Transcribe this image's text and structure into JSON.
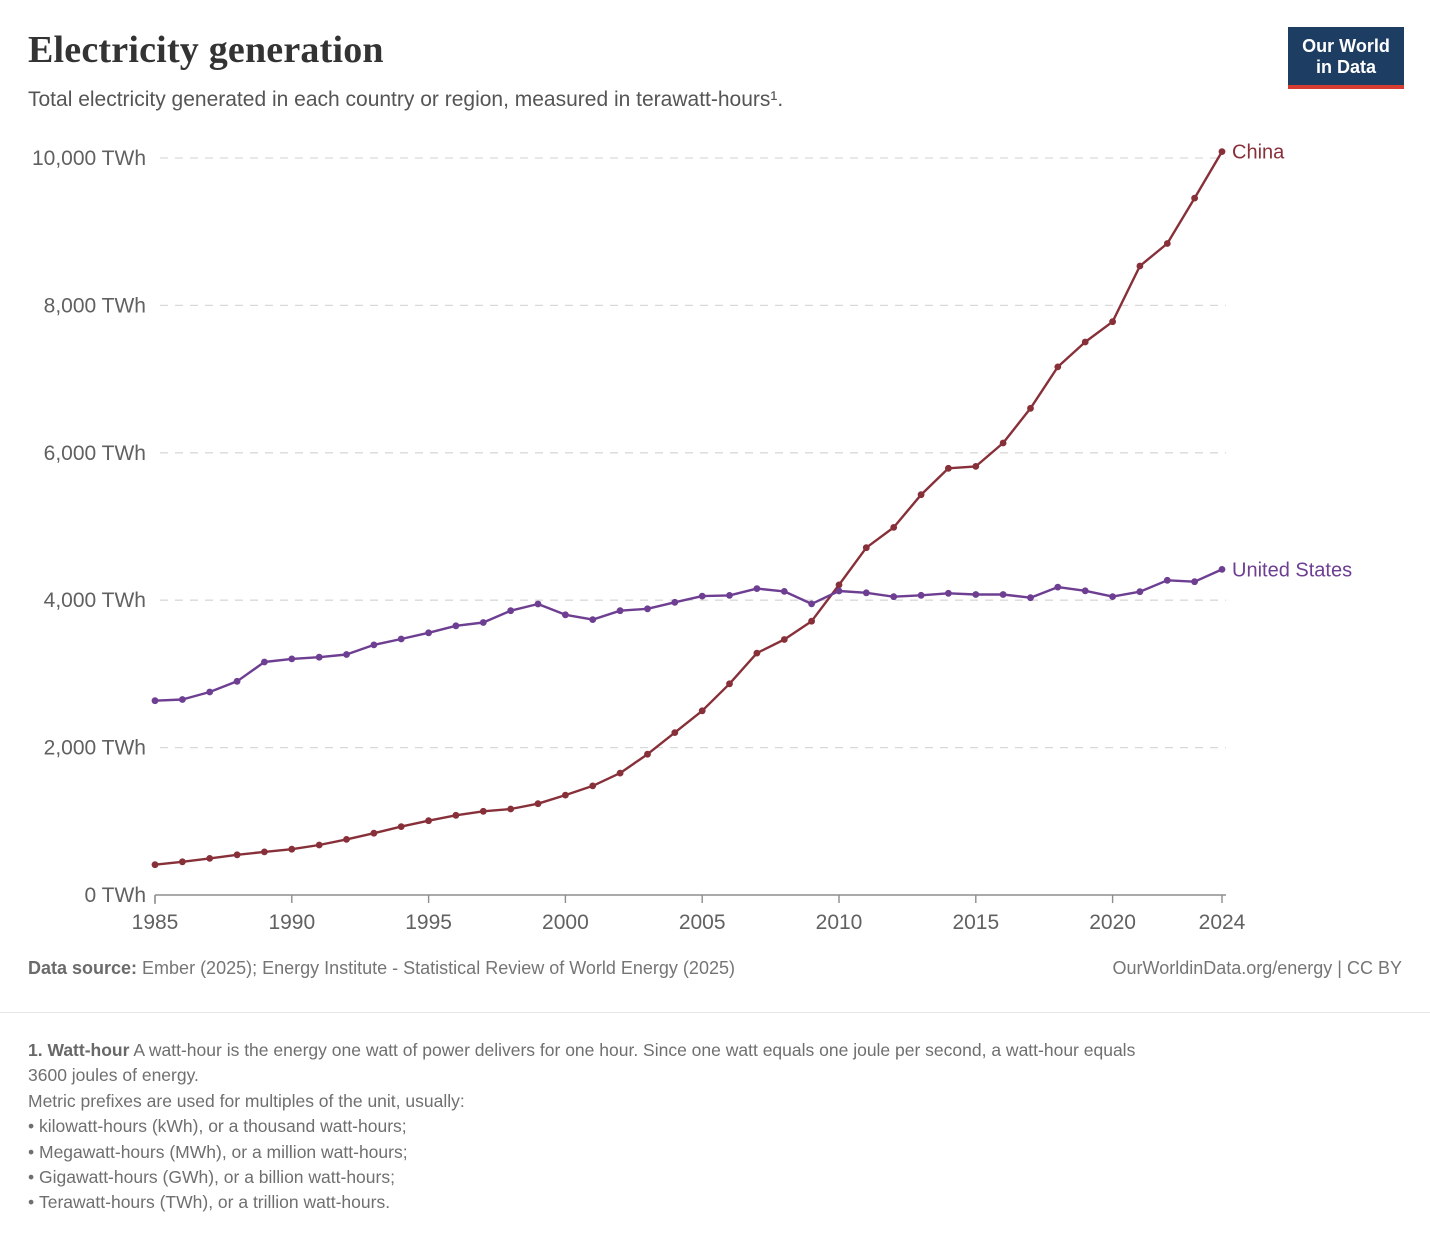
{
  "header": {
    "title": "Electricity generation",
    "subtitle": "Total electricity generated in each country or region, measured in terawatt-hours¹.",
    "logo": {
      "line1": "Our World",
      "line2": "in Data"
    }
  },
  "chart_data": {
    "type": "line",
    "x": [
      1985,
      1986,
      1987,
      1988,
      1989,
      1990,
      1991,
      1992,
      1993,
      1994,
      1995,
      1996,
      1997,
      1998,
      1999,
      2000,
      2001,
      2002,
      2003,
      2004,
      2005,
      2006,
      2007,
      2008,
      2009,
      2010,
      2011,
      2012,
      2013,
      2014,
      2015,
      2016,
      2017,
      2018,
      2019,
      2020,
      2021,
      2022,
      2023,
      2024
    ],
    "series": [
      {
        "name": "China",
        "color": "#883039",
        "values": [
          411,
          450,
          497,
          545,
          585,
          621,
          678,
          754,
          839,
          928,
          1008,
          1081,
          1136,
          1167,
          1239,
          1356,
          1481,
          1654,
          1911,
          2203,
          2500,
          2866,
          3282,
          3467,
          3715,
          4207,
          4713,
          4988,
          5432,
          5790,
          5815,
          6133,
          6604,
          7166,
          7503,
          7779,
          8534,
          8840,
          9456,
          10087
        ]
      },
      {
        "name": "United States",
        "color": "#6D3E91",
        "values": [
          2637,
          2653,
          2755,
          2900,
          3162,
          3203,
          3226,
          3263,
          3393,
          3473,
          3558,
          3652,
          3698,
          3858,
          3949,
          3802,
          3737,
          3858,
          3883,
          3971,
          4055,
          4065,
          4157,
          4119,
          3950,
          4125,
          4100,
          4048,
          4066,
          4094,
          4078,
          4077,
          4034,
          4178,
          4128,
          4049,
          4116,
          4270,
          4251,
          4418
        ]
      }
    ],
    "title": "Electricity generation",
    "xlabel": "",
    "ylabel": "TWh",
    "ylim": [
      0,
      10000
    ],
    "yticks": [
      0,
      2000,
      4000,
      6000,
      8000,
      10000
    ],
    "ytick_labels": [
      "0 TWh",
      "2,000 TWh",
      "4,000 TWh",
      "6,000 TWh",
      "8,000 TWh",
      "10,000 TWh"
    ],
    "xticks": [
      1985,
      1990,
      1995,
      2000,
      2005,
      2010,
      2015,
      2020,
      2024
    ],
    "grid": true,
    "legend_position": "end-of-line"
  },
  "footer": {
    "datasource_label": "Data source:",
    "datasource_value": " Ember (2025); Energy Institute - Statistical Review of World Energy (2025)",
    "attribution": "OurWorldinData.org/energy | CC BY"
  },
  "footnote": {
    "marker": "1. Watt-hour",
    "definition_line1": " A watt-hour is the energy one watt of power delivers for one hour. Since one watt equals one joule per second, a watt-hour equals",
    "definition_line2": "3600 joules of energy.",
    "prefixes_intro": "Metric prefixes are used for multiples of the unit, usually:",
    "bullets": [
      "kilowatt-hours (kWh), or a thousand watt-hours;",
      "Megawatt-hours (MWh), or a million watt-hours;",
      "Gigawatt-hours (GWh), or a billion watt-hours;",
      "Terawatt-hours (TWh), or a trillion watt-hours."
    ]
  }
}
